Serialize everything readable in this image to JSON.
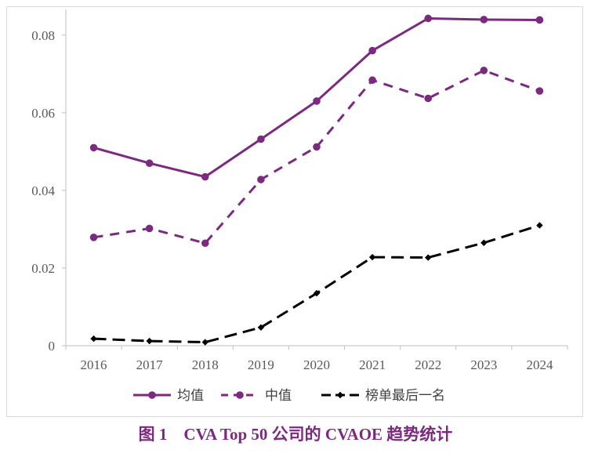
{
  "chart_data": {
    "type": "line",
    "title": "",
    "xlabel": "",
    "ylabel": "",
    "categories": [
      "2016",
      "2017",
      "2018",
      "2019",
      "2020",
      "2021",
      "2022",
      "2023",
      "2024"
    ],
    "ylim": [
      0,
      0.085
    ],
    "yticks": [
      "0",
      "0.02",
      "0.04",
      "0.06",
      "0.08"
    ],
    "ytick_values": [
      0,
      0.02,
      0.04,
      0.06,
      0.08
    ],
    "legend_position": "bottom",
    "series": [
      {
        "name": "均值",
        "color": "#7b2a80",
        "style": "solid",
        "marker": "circle",
        "values": [
          0.051,
          0.047,
          0.0435,
          0.0532,
          0.063,
          0.076,
          0.0843,
          0.084,
          0.0839
        ]
      },
      {
        "name": "中值",
        "color": "#7b2a80",
        "style": "dashed",
        "marker": "circle",
        "values": [
          0.0279,
          0.0302,
          0.0264,
          0.0428,
          0.0512,
          0.0684,
          0.0637,
          0.0709,
          0.0656
        ]
      },
      {
        "name": "榜单最后一名",
        "color": "#000000",
        "style": "dashed",
        "marker": "diamond",
        "values": [
          0.0018,
          0.0012,
          0.0009,
          0.0047,
          0.0135,
          0.0228,
          0.0227,
          0.0265,
          0.031
        ]
      }
    ]
  },
  "caption": {
    "text": "图 1　CVA Top 50 公司的 CVAOE 趋势统计"
  }
}
